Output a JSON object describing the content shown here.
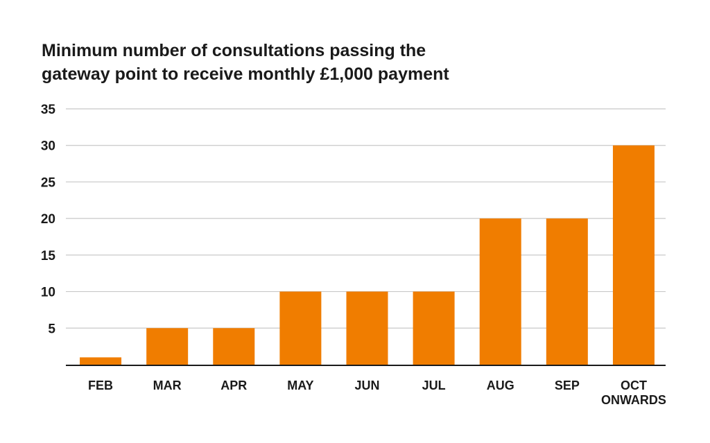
{
  "chart_data": {
    "type": "bar",
    "title_lines": [
      "Minimum number of consultations passing the",
      "gateway point to receive monthly £1,000 payment"
    ],
    "categories": [
      [
        "FEB"
      ],
      [
        "MAR"
      ],
      [
        "APR"
      ],
      [
        "MAY"
      ],
      [
        "JUN"
      ],
      [
        "JUL"
      ],
      [
        "AUG"
      ],
      [
        "SEP"
      ],
      [
        "OCT",
        "ONWARDS"
      ]
    ],
    "values": [
      1,
      5,
      5,
      10,
      10,
      10,
      20,
      20,
      30
    ],
    "ylim": [
      0,
      35
    ],
    "yticks": [
      5,
      10,
      15,
      20,
      25,
      30,
      35
    ],
    "grid": true,
    "bar_color": "#f07d00",
    "grid_color": "#c8c8c8",
    "axis_color": "#1a1a1a"
  }
}
